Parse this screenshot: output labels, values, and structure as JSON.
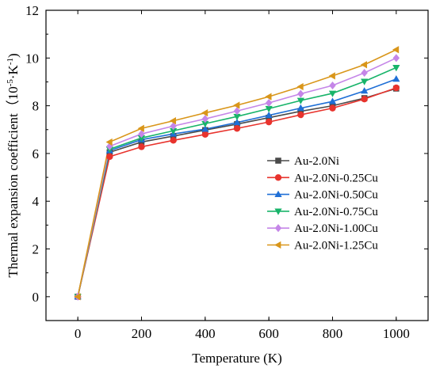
{
  "chart_data": {
    "type": "line",
    "xlabel": "Temperature (K)",
    "ylabel": "Thermal expansion coefficient（10",
    "ylabel_sup": "-5",
    "ylabel_mid": "·K",
    "ylabel_sup2": "-1",
    "ylabel_end": ")",
    "xlim": [
      -100,
      1100
    ],
    "ylim": [
      -1,
      12
    ],
    "xticks": [
      0,
      200,
      400,
      600,
      800,
      1000
    ],
    "yticks": [
      0,
      2,
      4,
      6,
      8,
      10,
      12
    ],
    "legend_position": "center-right",
    "grid": false,
    "x": [
      0,
      100,
      200,
      300,
      400,
      500,
      600,
      700,
      800,
      900,
      1000
    ],
    "series": [
      {
        "name": "Au-2.0Ni",
        "color": "#4a4a4a",
        "marker": "square",
        "values": [
          0,
          6.05,
          6.48,
          6.73,
          6.98,
          7.23,
          7.5,
          7.77,
          8.0,
          8.32,
          8.72
        ]
      },
      {
        "name": "Au-2.0Ni-0.25Cu",
        "color": "#e8332d",
        "marker": "circle",
        "values": [
          0,
          5.87,
          6.28,
          6.55,
          6.8,
          7.05,
          7.32,
          7.62,
          7.9,
          8.28,
          8.75
        ]
      },
      {
        "name": "Au-2.0Ni-0.50Cu",
        "color": "#1f6fd6",
        "marker": "triangle-up",
        "values": [
          0,
          6.12,
          6.58,
          6.82,
          7.02,
          7.3,
          7.6,
          7.9,
          8.18,
          8.62,
          9.12
        ]
      },
      {
        "name": "Au-2.0Ni-0.75Cu",
        "color": "#18b46a",
        "marker": "triangle-down",
        "values": [
          0,
          6.18,
          6.65,
          6.95,
          7.25,
          7.55,
          7.88,
          8.22,
          8.52,
          9.02,
          9.6
        ]
      },
      {
        "name": "Au-2.0Ni-1.00Cu",
        "color": "#c586e8",
        "marker": "diamond",
        "values": [
          0,
          6.3,
          6.82,
          7.15,
          7.45,
          7.78,
          8.12,
          8.5,
          8.85,
          9.38,
          10.0
        ]
      },
      {
        "name": "Au-2.0Ni-1.25Cu",
        "color": "#d9961a",
        "marker": "triangle-left",
        "values": [
          0,
          6.48,
          7.05,
          7.37,
          7.7,
          8.02,
          8.38,
          8.8,
          9.25,
          9.72,
          10.35
        ]
      }
    ]
  }
}
